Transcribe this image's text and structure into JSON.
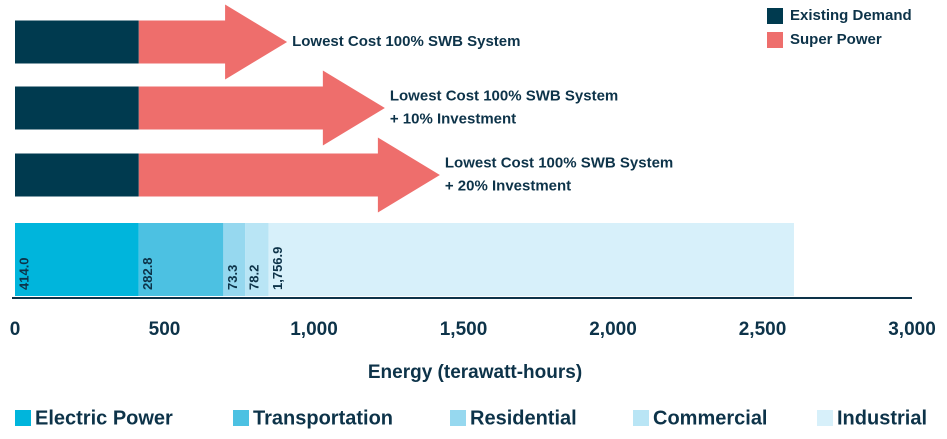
{
  "chart_data": {
    "type": "bar",
    "orientation": "horizontal",
    "categories": [
      [
        "Lowest Cost 100% SWB System"
      ],
      [
        "Lowest Cost 100% SWB System",
        "+ 10% Investment"
      ],
      [
        "Lowest Cost 100% SWB System",
        "+ 20% Investment"
      ]
    ],
    "series": [
      {
        "name": "Existing Demand",
        "color": "#003a4f",
        "values": [
          414,
          414,
          414
        ]
      },
      {
        "name": "Super Power",
        "color": "#ee6e6c",
        "values": [
          496,
          823,
          1007
        ]
      }
    ],
    "breakdown": [
      {
        "name": "Electric Power",
        "color": "#00b5dc",
        "value": 414.0,
        "value_label": "414.0"
      },
      {
        "name": "Transportation",
        "color": "#4cc1e2",
        "value": 282.8,
        "value_label": "282.8"
      },
      {
        "name": "Residential",
        "color": "#96d8ef",
        "value": 73.3,
        "value_label": "73.3"
      },
      {
        "name": "Commercial",
        "color": "#b9e5f5",
        "value": 78.2,
        "value_label": "78.2"
      },
      {
        "name": "Industrial",
        "color": "#d7f0fa",
        "value": 1756.9,
        "value_label": "1,756.9"
      }
    ],
    "xlabel": "Energy (terawatt-hours)",
    "xlim": [
      0,
      3000
    ],
    "xticks": [
      0,
      500,
      {
        "value": 1000,
        "label": "1,000"
      },
      {
        "value": 1500,
        "label": "1,500"
      },
      {
        "value": 2000,
        "label": "2,000"
      },
      {
        "value": 2500,
        "label": "2,500"
      },
      {
        "value": 3000,
        "label": "3,000"
      }
    ],
    "legend": "top-right"
  }
}
